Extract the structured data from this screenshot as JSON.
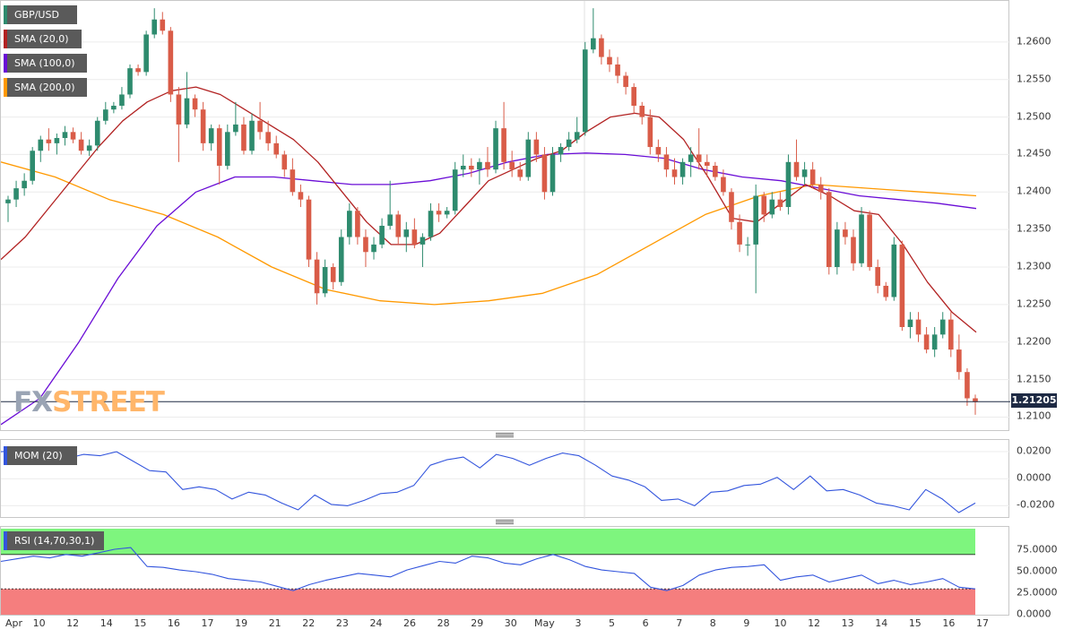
{
  "instrument": "GBP/USD",
  "colors": {
    "up": "#2e8b6e",
    "down": "#d95c48",
    "sma20": "#b22222",
    "sma100": "#6a0dd6",
    "sma200": "#ff9900",
    "mom": "#3355dd",
    "rsi": "#3355dd",
    "rsi_overbought": "#7ef57e",
    "rsi_oversold": "#f57e7e",
    "watermark_fx": "#9aa4b4",
    "watermark_street": "#ffb66a"
  },
  "legend": {
    "pair": "GBP/USD",
    "sma20": "SMA (20,0)",
    "sma100": "SMA (100,0)",
    "sma200": "SMA (200,0)",
    "mom": "MOM (20)",
    "rsi": "RSI (14,70,30,1)"
  },
  "watermark": {
    "fx": "FX",
    "street": "STREET"
  },
  "last_price": "1.21205",
  "price_axis": {
    "min": 1.2085,
    "max": 1.265,
    "ticks": [
      "1.2600",
      "1.2550",
      "1.2500",
      "1.2450",
      "1.2400",
      "1.2350",
      "1.2300",
      "1.2250",
      "1.2200",
      "1.2150",
      "1.2100"
    ]
  },
  "mom_axis": {
    "min": -0.027,
    "max": 0.026,
    "ticks": [
      "0.0200",
      "0.0000",
      "-0.0200"
    ]
  },
  "rsi_axis": {
    "min": 0,
    "max": 100,
    "ticks": [
      "75.0000",
      "50.0000",
      "25.0000",
      "0.0000"
    ]
  },
  "x_labels": [
    "Apr",
    "10",
    "12",
    "14",
    "15",
    "16",
    "17",
    "19",
    "21",
    "22",
    "23",
    "24",
    "26",
    "28",
    "29",
    "30",
    "May",
    "3",
    "5",
    "6",
    "7",
    "8",
    "9",
    "10",
    "12",
    "13",
    "14",
    "15",
    "16",
    "17"
  ],
  "chart_data": {
    "type": "candlestick",
    "title": "GBP/USD",
    "series_count": 110,
    "candles": [
      [
        1.2385,
        1.2395,
        1.236,
        1.239
      ],
      [
        1.239,
        1.2415,
        1.238,
        1.2405
      ],
      [
        1.2405,
        1.2425,
        1.2395,
        1.2415
      ],
      [
        1.2415,
        1.246,
        1.241,
        1.2455
      ],
      [
        1.2455,
        1.2475,
        1.244,
        1.247
      ],
      [
        1.247,
        1.2485,
        1.2455,
        1.2465
      ],
      [
        1.2465,
        1.2478,
        1.245,
        1.2472
      ],
      [
        1.2472,
        1.2488,
        1.2462,
        1.248
      ],
      [
        1.248,
        1.2486,
        1.2465,
        1.247
      ],
      [
        1.247,
        1.248,
        1.245,
        1.2455
      ],
      [
        1.2455,
        1.247,
        1.2448,
        1.2462
      ],
      [
        1.2462,
        1.25,
        1.2455,
        1.2495
      ],
      [
        1.2495,
        1.252,
        1.249,
        1.251
      ],
      [
        1.251,
        1.252,
        1.2505,
        1.2515
      ],
      [
        1.2515,
        1.254,
        1.251,
        1.253
      ],
      [
        1.253,
        1.257,
        1.2525,
        1.2565
      ],
      [
        1.2565,
        1.257,
        1.2555,
        1.256
      ],
      [
        1.256,
        1.2615,
        1.2555,
        1.261
      ],
      [
        1.261,
        1.2645,
        1.2605,
        1.263
      ],
      [
        1.263,
        1.264,
        1.261,
        1.2615
      ],
      [
        1.2615,
        1.262,
        1.252,
        1.253
      ],
      [
        1.253,
        1.254,
        1.244,
        1.249
      ],
      [
        1.249,
        1.256,
        1.2485,
        1.2525
      ],
      [
        1.2525,
        1.253,
        1.25,
        1.251
      ],
      [
        1.251,
        1.252,
        1.2455,
        1.2465
      ],
      [
        1.2465,
        1.249,
        1.2455,
        1.2485
      ],
      [
        1.2485,
        1.249,
        1.241,
        1.2435
      ],
      [
        1.2435,
        1.249,
        1.243,
        1.248
      ],
      [
        1.248,
        1.252,
        1.2475,
        1.249
      ],
      [
        1.249,
        1.25,
        1.245,
        1.2455
      ],
      [
        1.2455,
        1.2505,
        1.245,
        1.2495
      ],
      [
        1.2495,
        1.252,
        1.247,
        1.248
      ],
      [
        1.248,
        1.2495,
        1.2455,
        1.2465
      ],
      [
        1.2465,
        1.2475,
        1.2445,
        1.245
      ],
      [
        1.245,
        1.2455,
        1.242,
        1.243
      ],
      [
        1.243,
        1.2445,
        1.2395,
        1.24
      ],
      [
        1.24,
        1.241,
        1.238,
        1.239
      ],
      [
        1.239,
        1.2395,
        1.23,
        1.231
      ],
      [
        1.231,
        1.232,
        1.225,
        1.2265
      ],
      [
        1.2265,
        1.231,
        1.226,
        1.23
      ],
      [
        1.23,
        1.2305,
        1.227,
        1.228
      ],
      [
        1.228,
        1.235,
        1.2275,
        1.234
      ],
      [
        1.234,
        1.2385,
        1.233,
        1.2375
      ],
      [
        1.2375,
        1.238,
        1.233,
        1.234
      ],
      [
        1.234,
        1.235,
        1.23,
        1.232
      ],
      [
        1.232,
        1.234,
        1.231,
        1.233
      ],
      [
        1.233,
        1.2365,
        1.2325,
        1.2355
      ],
      [
        1.2355,
        1.2415,
        1.235,
        1.237
      ],
      [
        1.237,
        1.2375,
        1.233,
        1.234
      ],
      [
        1.234,
        1.236,
        1.232,
        1.235
      ],
      [
        1.235,
        1.2365,
        1.2325,
        1.233
      ],
      [
        1.233,
        1.2345,
        1.23,
        1.234
      ],
      [
        1.234,
        1.2385,
        1.2335,
        1.2375
      ],
      [
        1.2375,
        1.2385,
        1.236,
        1.237
      ],
      [
        1.237,
        1.238,
        1.2365,
        1.2375
      ],
      [
        1.2375,
        1.244,
        1.237,
        1.243
      ],
      [
        1.243,
        1.245,
        1.242,
        1.2435
      ],
      [
        1.2435,
        1.2445,
        1.242,
        1.243
      ],
      [
        1.243,
        1.2445,
        1.241,
        1.244
      ],
      [
        1.244,
        1.246,
        1.242,
        1.243
      ],
      [
        1.243,
        1.2495,
        1.2425,
        1.2485
      ],
      [
        1.2485,
        1.252,
        1.243,
        1.244
      ],
      [
        1.244,
        1.2455,
        1.242,
        1.243
      ],
      [
        1.243,
        1.244,
        1.2415,
        1.242
      ],
      [
        1.242,
        1.248,
        1.2415,
        1.247
      ],
      [
        1.247,
        1.248,
        1.244,
        1.245
      ],
      [
        1.245,
        1.246,
        1.239,
        1.24
      ],
      [
        1.24,
        1.246,
        1.2395,
        1.245
      ],
      [
        1.245,
        1.2465,
        1.244,
        1.246
      ],
      [
        1.246,
        1.248,
        1.2455,
        1.247
      ],
      [
        1.247,
        1.25,
        1.2465,
        1.248
      ],
      [
        1.248,
        1.26,
        1.2475,
        1.259
      ],
      [
        1.259,
        1.2645,
        1.2585,
        1.2605
      ],
      [
        1.2605,
        1.261,
        1.257,
        1.258
      ],
      [
        1.258,
        1.259,
        1.256,
        1.257
      ],
      [
        1.257,
        1.258,
        1.2545,
        1.2555
      ],
      [
        1.2555,
        1.256,
        1.253,
        1.254
      ],
      [
        1.254,
        1.2545,
        1.2505,
        1.2515
      ],
      [
        1.2515,
        1.252,
        1.249,
        1.25
      ],
      [
        1.25,
        1.251,
        1.245,
        1.246
      ],
      [
        1.246,
        1.247,
        1.244,
        1.245
      ],
      [
        1.245,
        1.246,
        1.242,
        1.243
      ],
      [
        1.243,
        1.2445,
        1.241,
        1.242
      ],
      [
        1.242,
        1.2445,
        1.241,
        1.244
      ],
      [
        1.244,
        1.246,
        1.242,
        1.245
      ],
      [
        1.245,
        1.2485,
        1.243,
        1.244
      ],
      [
        1.244,
        1.245,
        1.242,
        1.2435
      ],
      [
        1.2435,
        1.244,
        1.2415,
        1.242
      ],
      [
        1.242,
        1.243,
        1.2395,
        1.24
      ],
      [
        1.24,
        1.2405,
        1.235,
        1.236
      ],
      [
        1.236,
        1.237,
        1.232,
        1.233
      ],
      [
        1.233,
        1.234,
        1.2315,
        1.233
      ],
      [
        1.233,
        1.241,
        1.2265,
        1.2395
      ],
      [
        1.2395,
        1.24,
        1.236,
        1.237
      ],
      [
        1.237,
        1.24,
        1.2365,
        1.239
      ],
      [
        1.239,
        1.24,
        1.2375,
        1.238
      ],
      [
        1.238,
        1.245,
        1.237,
        1.244
      ],
      [
        1.244,
        1.247,
        1.2415,
        1.242
      ],
      [
        1.242,
        1.244,
        1.241,
        1.243
      ],
      [
        1.243,
        1.244,
        1.2405,
        1.241
      ],
      [
        1.241,
        1.242,
        1.239,
        1.24
      ],
      [
        1.24,
        1.2405,
        1.229,
        1.23
      ],
      [
        1.23,
        1.236,
        1.229,
        1.235
      ],
      [
        1.235,
        1.236,
        1.233,
        1.234
      ],
      [
        1.234,
        1.235,
        1.2295,
        1.2305
      ],
      [
        1.2305,
        1.238,
        1.23,
        1.237
      ],
      [
        1.237,
        1.2375,
        1.2295,
        1.23
      ],
      [
        1.23,
        1.231,
        1.2265,
        1.2275
      ],
      [
        1.2275,
        1.228,
        1.2255,
        1.226
      ],
      [
        1.226,
        1.234,
        1.2255,
        1.233
      ]
    ],
    "tail_candles": [
      [
        1.233,
        1.2335,
        1.2215,
        1.222
      ],
      [
        1.222,
        1.224,
        1.2205,
        1.223
      ],
      [
        1.223,
        1.224,
        1.22,
        1.221
      ],
      [
        1.221,
        1.222,
        1.2185,
        1.219
      ],
      [
        1.219,
        1.222,
        1.218,
        1.221
      ],
      [
        1.221,
        1.224,
        1.2205,
        1.223
      ],
      [
        1.223,
        1.224,
        1.218,
        1.219
      ],
      [
        1.219,
        1.221,
        1.215,
        1.216
      ],
      [
        1.216,
        1.2165,
        1.2115,
        1.2125
      ],
      [
        1.2125,
        1.213,
        1.2103,
        1.212
      ]
    ],
    "sma20": [
      1.231,
      1.234,
      1.238,
      1.242,
      1.246,
      1.2495,
      1.252,
      1.2535,
      1.254,
      1.253,
      1.251,
      1.249,
      1.247,
      1.244,
      1.24,
      1.236,
      1.233,
      1.233,
      1.2345,
      1.238,
      1.2415,
      1.243,
      1.2445,
      1.2455,
      1.248,
      1.25,
      1.2505,
      1.25,
      1.247,
      1.242,
      1.2365,
      1.236,
      1.2385,
      1.241,
      1.2395,
      1.2375,
      1.237,
      1.233,
      1.228,
      1.224,
      1.2213
    ],
    "sma100": [
      1.209,
      1.2125,
      1.22,
      1.2285,
      1.2355,
      1.24,
      1.242,
      1.242,
      1.2415,
      1.241,
      1.241,
      1.2415,
      1.2425,
      1.244,
      1.245,
      1.2452,
      1.245,
      1.2445,
      1.243,
      1.242,
      1.2415,
      1.2405,
      1.2395,
      1.239,
      1.2385,
      1.2378
    ],
    "sma200": [
      1.244,
      1.242,
      1.239,
      1.237,
      1.234,
      1.23,
      1.227,
      1.2255,
      1.225,
      1.2255,
      1.2265,
      1.229,
      1.233,
      1.237,
      1.2395,
      1.241,
      1.2405,
      1.24,
      1.2395
    ],
    "mom": [
      0.02,
      0.0205,
      0.023,
      0.018,
      0.015,
      0.018,
      0.017,
      0.02,
      0.013,
      0.006,
      0.005,
      -0.008,
      -0.006,
      -0.008,
      -0.015,
      -0.01,
      -0.012,
      -0.018,
      -0.023,
      -0.012,
      -0.019,
      -0.02,
      -0.016,
      -0.011,
      -0.01,
      -0.005,
      0.01,
      0.014,
      0.016,
      0.008,
      0.018,
      0.015,
      0.01,
      0.015,
      0.019,
      0.017,
      0.01,
      0.002,
      -0.001,
      -0.006,
      -0.016,
      -0.015,
      -0.02,
      -0.01,
      -0.009,
      -0.005,
      -0.004,
      0.001,
      -0.008,
      0.002,
      -0.009,
      -0.008,
      -0.012,
      -0.018,
      -0.02,
      -0.023,
      -0.008,
      -0.015,
      -0.025,
      -0.018
    ],
    "rsi": [
      62,
      65,
      68,
      66,
      70,
      68,
      72,
      76,
      78,
      56,
      55,
      52,
      50,
      47,
      42,
      40,
      38,
      33,
      28,
      35,
      40,
      44,
      48,
      46,
      44,
      52,
      57,
      62,
      60,
      68,
      66,
      60,
      58,
      65,
      70,
      64,
      56,
      52,
      50,
      48,
      32,
      28,
      34,
      46,
      52,
      55,
      56,
      58,
      40,
      44,
      46,
      38,
      42,
      46,
      36,
      40,
      35,
      38,
      42,
      32,
      30
    ]
  }
}
